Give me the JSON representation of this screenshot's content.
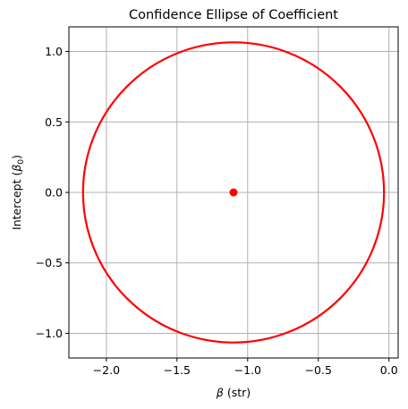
{
  "chart_data": {
    "type": "scatter",
    "title": "Confidence Ellipse of Coefficient",
    "xlabel_symbol": "β",
    "xlabel_text": " (str)",
    "ylabel_text": "Intercept (",
    "ylabel_symbol": "β",
    "ylabel_subscript": "0",
    "ylabel_close": ")",
    "xlim": [
      -2.265,
      0.065
    ],
    "ylim": [
      -1.175,
      1.175
    ],
    "xticks": [
      {
        "value": -2.0,
        "label": "−2.0"
      },
      {
        "value": -1.5,
        "label": "−1.5"
      },
      {
        "value": -1.0,
        "label": "−1.0"
      },
      {
        "value": -0.5,
        "label": "−0.5"
      },
      {
        "value": 0.0,
        "label": "0.0"
      }
    ],
    "yticks": [
      {
        "value": -1.0,
        "label": "−1.0"
      },
      {
        "value": -0.5,
        "label": "−0.5"
      },
      {
        "value": 0.0,
        "label": "0.0"
      },
      {
        "value": 0.5,
        "label": "0.5"
      },
      {
        "value": 1.0,
        "label": "1.0"
      }
    ],
    "grid": true,
    "center_point": {
      "x": -1.1,
      "y": 0.0
    },
    "ellipse": {
      "center_x": -1.1,
      "center_y": 0.0,
      "semi_axis_x": 1.065,
      "semi_axis_y": 1.065
    },
    "colors": {
      "ellipse": "#ff0000",
      "point": "#ff0000",
      "grid": "#b0b0b0"
    }
  }
}
